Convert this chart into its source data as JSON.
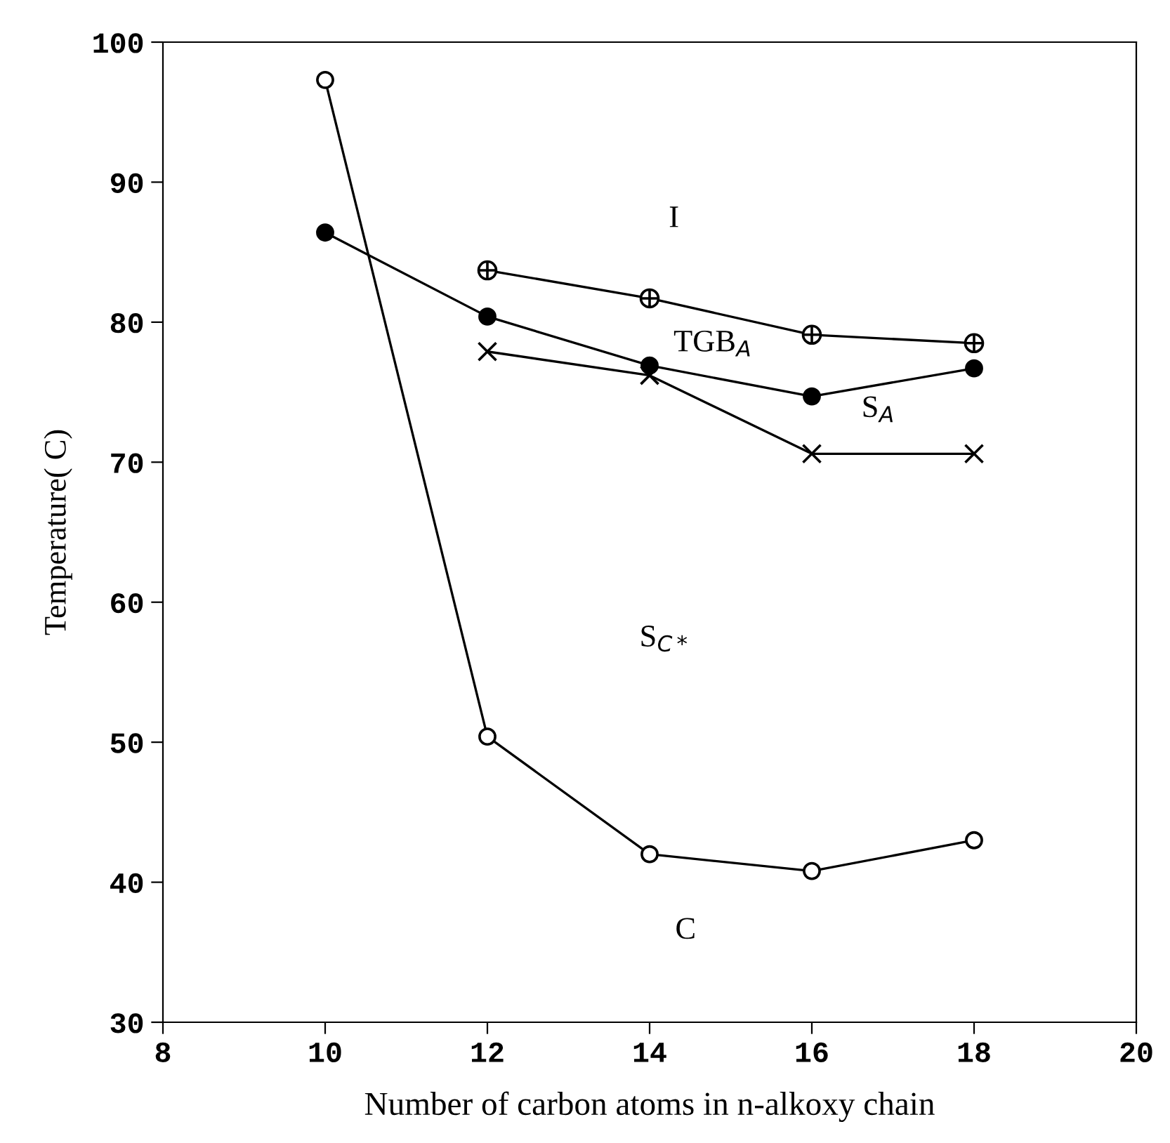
{
  "chart_data": {
    "type": "line",
    "xlabel": "Number of carbon atoms in n-alkoxy chain",
    "ylabel": "Temperature( C)",
    "x": [
      10,
      12,
      14,
      16,
      18
    ],
    "series": [
      {
        "color": "#000000",
        "marker": "circle",
        "values": [
          97.3,
          50.4,
          42.0,
          40.8,
          43.0
        ]
      },
      {
        "color": "#000000",
        "marker": "circle",
        "values": [
          86.4,
          80.4,
          76.9,
          74.7,
          76.7
        ]
      },
      {
        "color": "#000000",
        "marker": "cross",
        "values": [
          null,
          83.7,
          81.7,
          79.1,
          78.5
        ]
      },
      {
        "color": "#000000",
        "marker": "cross",
        "values": [
          null,
          77.9,
          76.2,
          70.6,
          70.6
        ]
      }
    ],
    "xlim": [
      8,
      20
    ],
    "xticks": [
      8,
      10,
      12,
      14,
      16,
      18,
      20
    ],
    "ylim": [
      30,
      100
    ],
    "yticks": [
      30,
      40,
      50,
      60,
      70,
      80,
      90,
      100
    ],
    "grid": false,
    "line_style": "solid",
    "annotations": [
      "I",
      "TGB$_{A}$",
      "S$_{A}$",
      "S$_{C*}$",
      "C"
    ]
  }
}
